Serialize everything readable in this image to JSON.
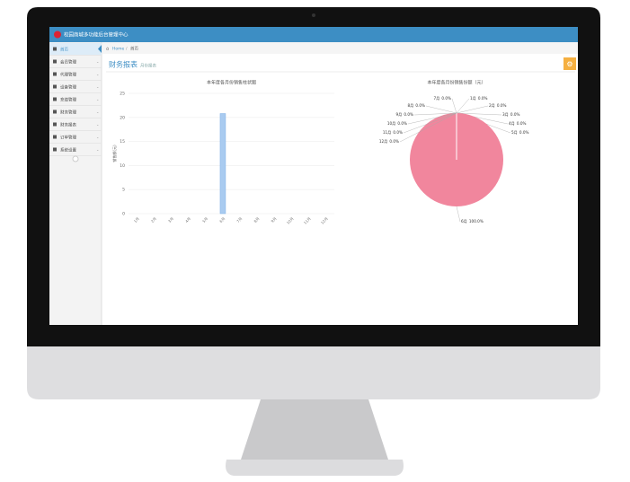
{
  "header": {
    "title": "校园商城多功能后台管理中心"
  },
  "sidebar": {
    "items": [
      "首页",
      "会员管理",
      "代理管理",
      "设备管理",
      "充值管理",
      "财务管理",
      "财务报表",
      "订单管理",
      "系统设置"
    ]
  },
  "breadcrumb": [
    "Home",
    "首页"
  ],
  "page": {
    "title": "财务报表",
    "subtitle": "月份报表"
  },
  "chart_data": [
    {
      "type": "bar",
      "title": "本年度各月份销售柱状图",
      "y_label": "销售额(元)",
      "categories": [
        "1月",
        "2月",
        "3月",
        "4月",
        "5月",
        "6月",
        "7月",
        "8月",
        "9月",
        "10月",
        "11月",
        "12月"
      ],
      "values": [
        0,
        0,
        0,
        0,
        0,
        20.8,
        0,
        0,
        0,
        0,
        0,
        0
      ],
      "color": "#a9cbf0",
      "ylim": [
        0,
        25
      ],
      "yticks": [
        0,
        5,
        10,
        15,
        20,
        25
      ],
      "grid": true
    },
    {
      "type": "pie",
      "title": "本年度各月份销售份额（元）",
      "categories": [
        "1月",
        "2月",
        "3月",
        "4月",
        "5月",
        "6月",
        "7月",
        "8月",
        "9月",
        "10月",
        "11月",
        "12月"
      ],
      "values": [
        0,
        0,
        0,
        0,
        0,
        100,
        0,
        0,
        0,
        0,
        0,
        0
      ],
      "value_labels": [
        "0.0%",
        "0.0%",
        "0.0%",
        "0.0%",
        "0.0%",
        "100.0%",
        "0.0%",
        "0.0%",
        "0.0%",
        "0.0%",
        "0.0%",
        "0.0%"
      ],
      "color": "#f1869d"
    }
  ]
}
